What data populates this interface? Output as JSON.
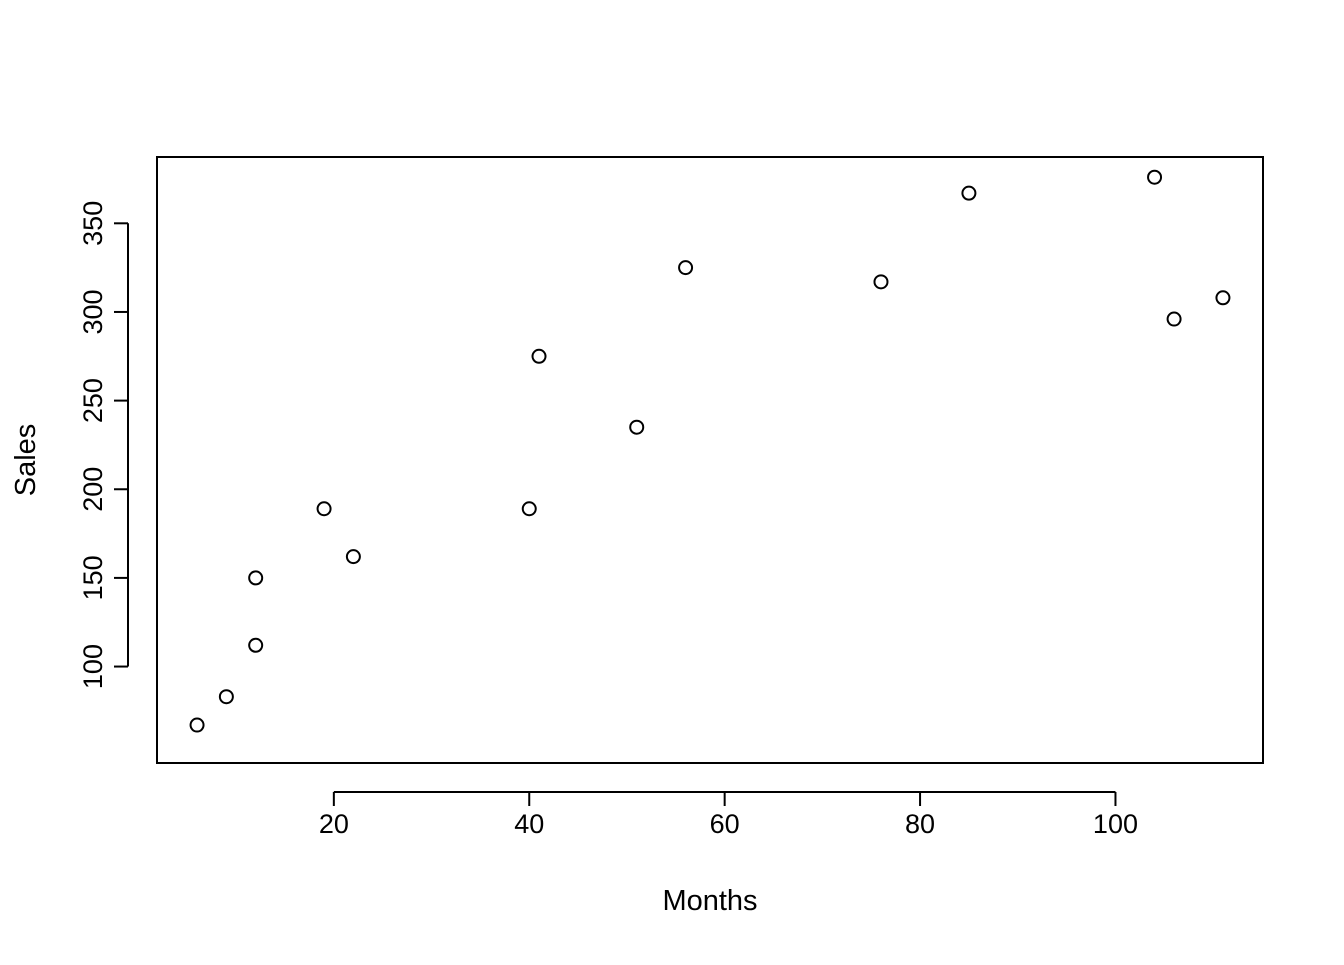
{
  "chart_data": {
    "type": "scatter",
    "title": "",
    "xlabel": "Months",
    "ylabel": "Sales",
    "xlim": [
      1.9,
      115.1
    ],
    "ylim": [
      45.6,
      387.4
    ],
    "x_ticks": [
      20,
      40,
      60,
      80,
      100
    ],
    "y_ticks": [
      100,
      150,
      200,
      250,
      300,
      350
    ],
    "x_tick_labels": [
      "20",
      "40",
      "60",
      "80",
      "100"
    ],
    "y_tick_labels": [
      "100",
      "150",
      "200",
      "250",
      "300",
      "350"
    ],
    "grid": false,
    "legend": "none",
    "marker": "open-circle",
    "colors": {
      "point": "#000000",
      "axis": "#000000",
      "background": "#ffffff"
    },
    "series": [
      {
        "points": [
          {
            "x": 6,
            "y": 67
          },
          {
            "x": 9,
            "y": 83
          },
          {
            "x": 12,
            "y": 112
          },
          {
            "x": 12,
            "y": 150
          },
          {
            "x": 19,
            "y": 189
          },
          {
            "x": 22,
            "y": 162
          },
          {
            "x": 40,
            "y": 189
          },
          {
            "x": 41,
            "y": 275
          },
          {
            "x": 51,
            "y": 235
          },
          {
            "x": 56,
            "y": 325
          },
          {
            "x": 76,
            "y": 317
          },
          {
            "x": 85,
            "y": 367
          },
          {
            "x": 104,
            "y": 376
          },
          {
            "x": 106,
            "y": 296
          },
          {
            "x": 111,
            "y": 308
          }
        ]
      }
    ]
  }
}
